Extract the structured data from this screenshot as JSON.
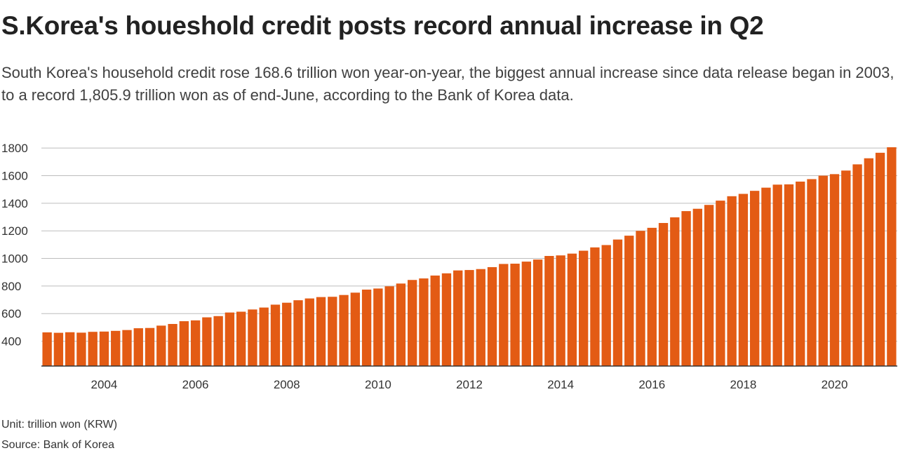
{
  "header": {
    "title": "S.Korea's houeshold credit posts record annual increase in Q2",
    "subtitle": "South Korea's household credit rose 168.6 trillion won year-on-year, the biggest annual increase since data release began in 2003, to a record 1,805.9 trillion won as of end-June, according to the Bank of Korea data."
  },
  "footer": {
    "unit": "Unit: trillion won (KRW)",
    "source": "Source: Bank of Korea"
  },
  "colors": {
    "bar": "#e35b14",
    "grid": "#bdbdbd"
  },
  "chart_data": {
    "type": "bar",
    "title": "",
    "xlabel": "",
    "ylabel": "",
    "x_start": "2002 Q4",
    "frequency": "quarterly",
    "ylim": [
      220,
      1805.9
    ],
    "yticks": [
      400,
      600,
      800,
      1000,
      1200,
      1400,
      1600,
      1800
    ],
    "xticks": [
      {
        "label": "2004",
        "index": 5
      },
      {
        "label": "2006",
        "index": 13
      },
      {
        "label": "2008",
        "index": 21
      },
      {
        "label": "2010",
        "index": 29
      },
      {
        "label": "2012",
        "index": 37
      },
      {
        "label": "2014",
        "index": 45
      },
      {
        "label": "2016",
        "index": 53
      },
      {
        "label": "2018",
        "index": 61
      },
      {
        "label": "2020",
        "index": 69
      }
    ],
    "grid": true,
    "values": [
      464,
      461,
      465,
      462,
      468,
      470,
      475,
      481,
      494,
      496,
      513,
      525,
      545,
      551,
      573,
      582,
      608,
      614,
      630,
      644,
      665,
      679,
      697,
      710,
      720,
      722,
      735,
      752,
      774,
      782,
      798,
      818,
      844,
      855,
      876,
      892,
      913,
      916,
      923,
      937,
      960,
      962,
      977,
      992,
      1018,
      1022,
      1035,
      1056,
      1080,
      1097,
      1137,
      1165,
      1200,
      1222,
      1257,
      1298,
      1343,
      1360,
      1388,
      1419,
      1451,
      1468,
      1490,
      1513,
      1535,
      1537,
      1557,
      1575,
      1600,
      1611,
      1637,
      1682,
      1726,
      1766,
      1805.9
    ]
  }
}
